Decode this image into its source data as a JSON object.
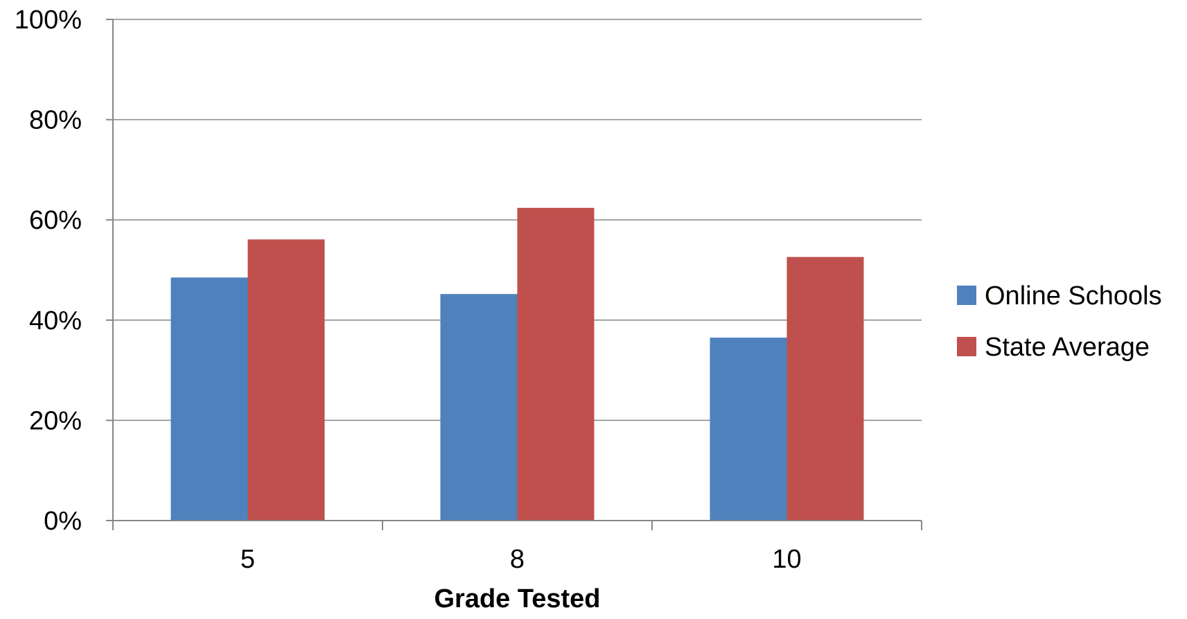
{
  "chart_data": {
    "type": "bar",
    "categories": [
      "5",
      "8",
      "10"
    ],
    "series": [
      {
        "name": "Online Schools",
        "values": [
          48.5,
          45.2,
          36.5
        ],
        "color": "#4F81BD"
      },
      {
        "name": "State Average",
        "values": [
          56.1,
          62.4,
          52.6
        ],
        "color": "#C0504D"
      }
    ],
    "xlabel": "Grade Tested",
    "ylabel": "",
    "ylim": [
      0,
      100
    ],
    "yticks": [
      0,
      20,
      40,
      60,
      80,
      100
    ],
    "ytick_labels": [
      "0%",
      "20%",
      "40%",
      "60%",
      "80%",
      "100%"
    ],
    "grid": true,
    "legend_position": "right"
  }
}
